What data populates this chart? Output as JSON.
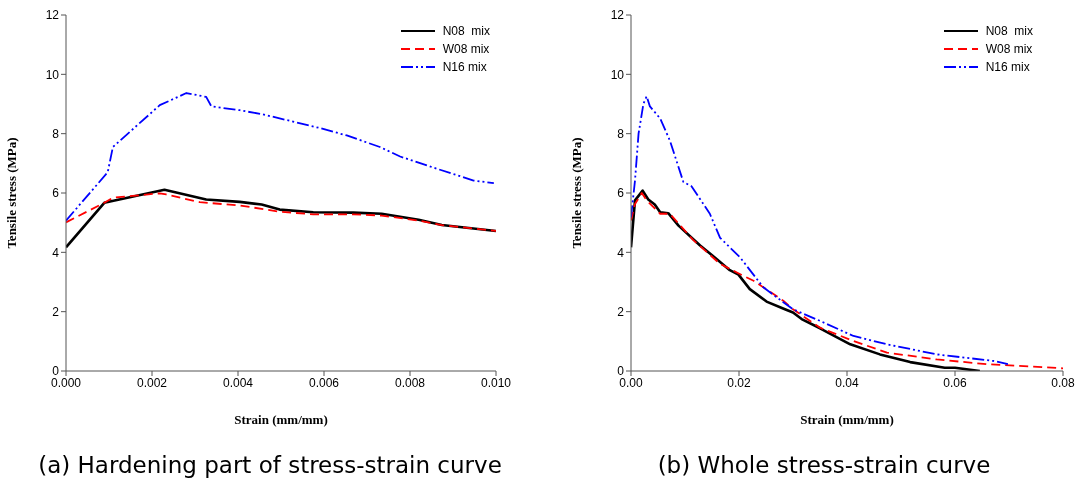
{
  "chart_data": [
    {
      "type": "line",
      "xlabel": "Strain (mm/mm)",
      "ylabel": "Tensile stress (MPa)",
      "xlim": [
        0,
        0.01
      ],
      "xticks": [
        {
          "value": 0,
          "label": "0.000"
        },
        {
          "value": 0.002,
          "label": "0.002"
        },
        {
          "value": 0.004,
          "label": "0.004"
        },
        {
          "value": 0.006,
          "label": "0.006"
        },
        {
          "value": 0.008,
          "label": "0.008"
        },
        {
          "value": 0.01,
          "label": "0.010"
        }
      ],
      "ylim": [
        0,
        12
      ],
      "yticks": [
        0,
        2,
        4,
        6,
        8,
        10,
        12
      ],
      "grid": false,
      "legend": "top right",
      "marker": "none",
      "annotations": [
        "(a) Hardening part of stress-strain curve"
      ],
      "series": [
        {
          "name": "N08  mix",
          "color": "#000000",
          "line_style": "solid",
          "x": [
            0,
            0.00089,
            0.00229,
            0.00326,
            0.00404,
            0.00455,
            0.00497,
            0.00575,
            0.00668,
            0.00734,
            0.0082,
            0.00874,
            0.01
          ],
          "values": [
            4.17,
            5.67,
            6.11,
            5.78,
            5.7,
            5.61,
            5.44,
            5.35,
            5.34,
            5.3,
            5.1,
            4.92,
            4.72
          ]
        },
        {
          "name": "W08 mix",
          "color": "#ff0000",
          "line_style": "dashed",
          "x": [
            0,
            0.00089,
            0.00109,
            0.00218,
            0.00233,
            0.00311,
            0.00404,
            0.00497,
            0.00575,
            0.00668,
            0.00734,
            0.0082,
            0.00874,
            0.01
          ],
          "values": [
            5.01,
            5.67,
            5.84,
            5.99,
            5.95,
            5.69,
            5.58,
            5.37,
            5.28,
            5.28,
            5.24,
            5.07,
            4.92,
            4.72
          ]
        },
        {
          "name": "N16 mix",
          "color": "#0000ff",
          "line_style": "dotted",
          "x": [
            0,
            0.00097,
            0.00109,
            0.00218,
            0.0028,
            0.00326,
            0.00338,
            0.00404,
            0.00458,
            0.0059,
            0.00653,
            0.0073,
            0.00777,
            0.00862,
            0.00948,
            0.00995
          ],
          "values": [
            5.07,
            6.7,
            7.55,
            8.96,
            9.37,
            9.24,
            8.92,
            8.79,
            8.65,
            8.19,
            7.94,
            7.55,
            7.23,
            6.82,
            6.42,
            6.33
          ]
        }
      ]
    },
    {
      "type": "line",
      "xlabel": "Strain (mm/mm)",
      "ylabel": "Tensile stress (MPa)",
      "xlim": [
        0,
        0.08
      ],
      "xticks": [
        {
          "value": 0,
          "label": "0.00"
        },
        {
          "value": 0.02,
          "label": "0.02"
        },
        {
          "value": 0.04,
          "label": "0.04"
        },
        {
          "value": 0.06,
          "label": "0.06"
        },
        {
          "value": 0.08,
          "label": "0.08"
        }
      ],
      "ylim": [
        0,
        12
      ],
      "yticks": [
        0,
        2,
        4,
        6,
        8,
        10,
        12
      ],
      "grid": false,
      "legend": "top right",
      "marker": "none",
      "annotations": [
        "(b) Whole stress-strain curve"
      ],
      "series": [
        {
          "name": "N08  mix",
          "color": "#000000",
          "line_style": "solid",
          "x": [
            0,
            0.00074,
            0.00216,
            0.0032,
            0.0044,
            0.0054,
            0.0069,
            0.0088,
            0.0128,
            0.0159,
            0.0183,
            0.0199,
            0.022,
            0.0251,
            0.0285,
            0.03,
            0.0316,
            0.035,
            0.0406,
            0.0461,
            0.0517,
            0.0581,
            0.06,
            0.0646
          ],
          "values": [
            4.17,
            5.75,
            6.08,
            5.78,
            5.61,
            5.35,
            5.32,
            4.9,
            4.23,
            3.77,
            3.4,
            3.25,
            2.76,
            2.34,
            2.08,
            1.97,
            1.75,
            1.44,
            0.9,
            0.56,
            0.3,
            0.11,
            0.11,
            0
          ]
        },
        {
          "name": "W08 mix",
          "color": "#ff0000",
          "line_style": "dashed",
          "x": [
            0,
            0.00074,
            0.002,
            0.0029,
            0.0054,
            0.0072,
            0.0115,
            0.0165,
            0.0196,
            0.0227,
            0.0282,
            0.03,
            0.035,
            0.0412,
            0.0474,
            0.0566,
            0.0659,
            0.08
          ],
          "values": [
            5.07,
            5.63,
            6.0,
            5.75,
            5.3,
            5.3,
            4.42,
            3.61,
            3.32,
            3.04,
            2.37,
            2.08,
            1.46,
            1.01,
            0.62,
            0.39,
            0.23,
            0.09
          ]
        },
        {
          "name": "N16 mix",
          "color": "#0000ff",
          "line_style": "dotted",
          "x": [
            0,
            0.00074,
            0.0014,
            0.0023,
            0.0029,
            0.0035,
            0.0054,
            0.0072,
            0.0097,
            0.0112,
            0.0146,
            0.0165,
            0.0202,
            0.0245,
            0.03,
            0.035,
            0.0412,
            0.0474,
            0.0566,
            0.0671,
            0.0698
          ],
          "values": [
            5.18,
            6.42,
            8.0,
            9.01,
            9.26,
            8.92,
            8.51,
            7.77,
            6.37,
            6.23,
            5.3,
            4.49,
            3.83,
            2.82,
            2.08,
            1.69,
            1.18,
            0.9,
            0.56,
            0.34,
            0.23
          ]
        }
      ]
    }
  ]
}
